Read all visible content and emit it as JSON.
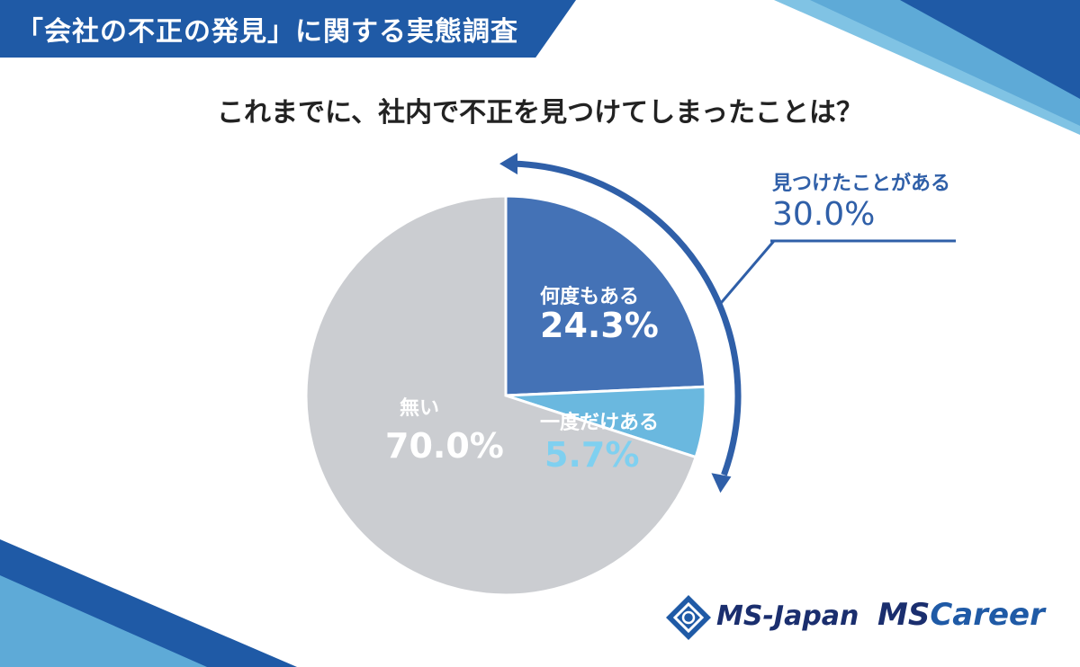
{
  "header": {
    "title": "「会社の不正の発見」に関する実態調査"
  },
  "question": "これまでに、社内で不正を見つけてしまったことは？",
  "colors": {
    "header": "#1f5aa6",
    "slice_many": "#4472b6",
    "slice_once": "#6ab8df",
    "slice_none": "#cbcdd1",
    "callout": "#2f5fa8"
  },
  "chart_data": {
    "type": "pie",
    "categories": [
      "何度もある",
      "一度だけある",
      "無い"
    ],
    "values": [
      24.3,
      5.7,
      70.0
    ],
    "labels": [
      "24.3%",
      "5.7%",
      "70.0%"
    ],
    "annotation": {
      "label": "見つけたことがある",
      "value": "30.0%"
    }
  },
  "logos": {
    "logo1": "MS-Japan",
    "logo2_ms": "MS",
    "logo2_career": "Career"
  }
}
